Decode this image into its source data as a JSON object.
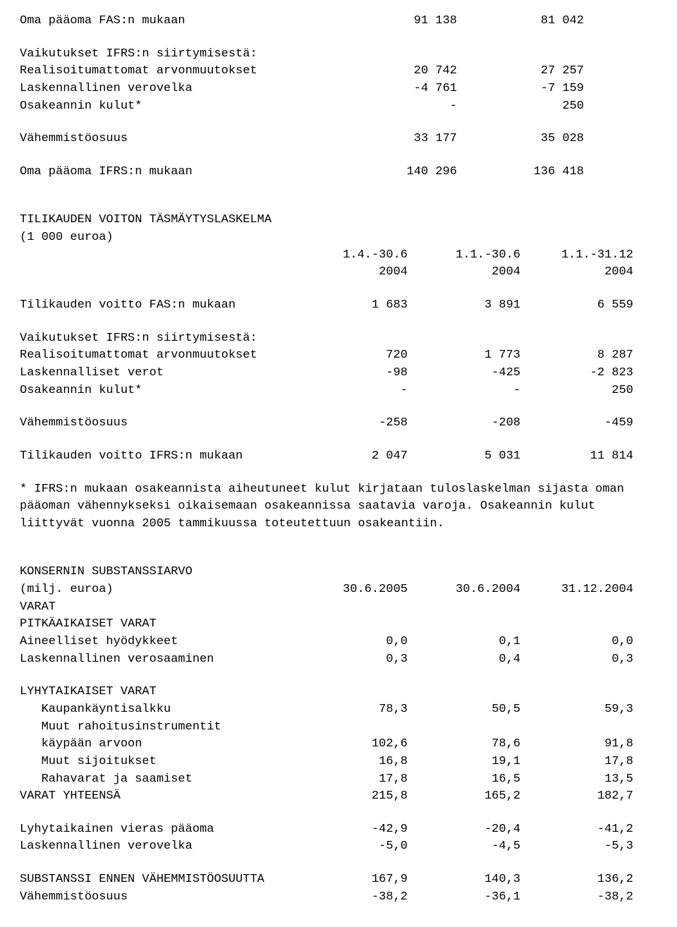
{
  "colors": {
    "text": "#000000",
    "background": "#ffffff"
  },
  "typography": {
    "family": "Courier New",
    "size_pt": 13,
    "weight": "normal"
  },
  "section1": {
    "title": {
      "label": "Oma pääoma FAS:n mukaan",
      "c1": "91 138",
      "c2": "81 042"
    },
    "sub_heading": "Vaikutukset IFRS:n siirtymisestä:",
    "rows": [
      {
        "label": "Realisoitumattomat arvonmuutokset",
        "c1": "20 742",
        "c2": "27 257"
      },
      {
        "label": "Laskennallinen verovelka",
        "c1": "-4 761",
        "c2": "-7 159"
      },
      {
        "label": "Osakeannin kulut*",
        "c1": "-",
        "c2": "250"
      }
    ],
    "minority": {
      "label": "Vähemmistöosuus",
      "c1": "33 177",
      "c2": "35 028"
    },
    "total": {
      "label": "Oma pääoma IFRS:n mukaan",
      "c1": "140 296",
      "c2": "136 418"
    }
  },
  "section2": {
    "heading1": "TILIKAUDEN VOITON TÄSMÄYTYSLASKELMA",
    "heading2": "(1 000 euroa)",
    "col_headers_top": {
      "c1": "1.4.-30.6",
      "c2": "1.1.-30.6",
      "c3": "1.1.-31.12"
    },
    "col_headers_bot": {
      "c1": "2004",
      "c2": "2004",
      "c3": "2004"
    },
    "fas": {
      "label": "Tilikauden voitto FAS:n mukaan",
      "c1": "1 683",
      "c2": "3 891",
      "c3": "6 559"
    },
    "sub_heading": "Vaikutukset IFRS:n siirtymisestä:",
    "rows": [
      {
        "label": "Realisoitumattomat arvonmuutokset",
        "c1": "720",
        "c2": "1 773",
        "c3": "8 287"
      },
      {
        "label": "Laskennalliset verot",
        "c1": "-98",
        "c2": "-425",
        "c3": "-2 823"
      },
      {
        "label": "Osakeannin kulut*",
        "c1": "-",
        "c2": "-",
        "c3": "250"
      }
    ],
    "minority": {
      "label": "Vähemmistöosuus",
      "c1": "-258",
      "c2": "-208",
      "c3": "-459"
    },
    "total": {
      "label": "Tilikauden voitto IFRS:n mukaan",
      "c1": "2 047",
      "c2": "5 031",
      "c3": "11 814"
    }
  },
  "footnote": "* IFRS:n mukaan osakeannista aiheutuneet kulut kirjataan tuloslaskelman sijasta oman pääoman vähennykseksi oikaisemaan osakeannissa saatavia varoja. Osakeannin kulut liittyvät vuonna 2005 tammikuussa toteutettuun osakeantiin.",
  "section3": {
    "heading1": "KONSERNIN SUBSTANSSIARVO",
    "heading2": {
      "label": "(milj. euroa)",
      "c1": "30.6.2005",
      "c2": "30.6.2004",
      "c3": "31.12.2004"
    },
    "varat": "VARAT",
    "pitka": "PITKÄAIKAISET VARAT",
    "long_rows": [
      {
        "label": "Aineelliset hyödykkeet",
        "c1": "0,0",
        "c2": "0,1",
        "c3": "0,0"
      },
      {
        "label": "Laskennallinen verosaaminen",
        "c1": "0,3",
        "c2": "0,4",
        "c3": "0,3"
      }
    ],
    "lyhyt": "LYHYTAIKAISET VARAT",
    "short_rows": [
      {
        "label": "   Kaupankäyntisalkku",
        "c1": "78,3",
        "c2": "50,5",
        "c3": "59,3"
      },
      {
        "label": "   Muut rahoitusinstrumentit",
        "c1": "",
        "c2": "",
        "c3": ""
      },
      {
        "label": "   käypään arvoon",
        "c1": "102,6",
        "c2": "78,6",
        "c3": "91,8"
      },
      {
        "label": "   Muut sijoitukset",
        "c1": "16,8",
        "c2": "19,1",
        "c3": "17,8"
      },
      {
        "label": "   Rahavarat ja saamiset",
        "c1": "17,8",
        "c2": "16,5",
        "c3": "13,5"
      }
    ],
    "varat_total": {
      "label": "VARAT YHTEENSÄ",
      "c1": "215,8",
      "c2": "165,2",
      "c3": "182,7"
    },
    "liab_rows": [
      {
        "label": "Lyhytaikainen vieras pääoma",
        "c1": "-42,9",
        "c2": "-20,4",
        "c3": "-41,2"
      },
      {
        "label": "Laskennallinen verovelka",
        "c1": "-5,0",
        "c2": "-4,5",
        "c3": "-5,3"
      }
    ],
    "subst": {
      "label": "SUBSTANSSI ENNEN VÄHEMMISTÖOSUUTTA",
      "c1": "167,9",
      "c2": "140,3",
      "c3": "136,2"
    },
    "minority": {
      "label": "Vähemmistöosuus",
      "c1": "-38,2",
      "c2": "-36,1",
      "c3": "-38,2"
    }
  }
}
